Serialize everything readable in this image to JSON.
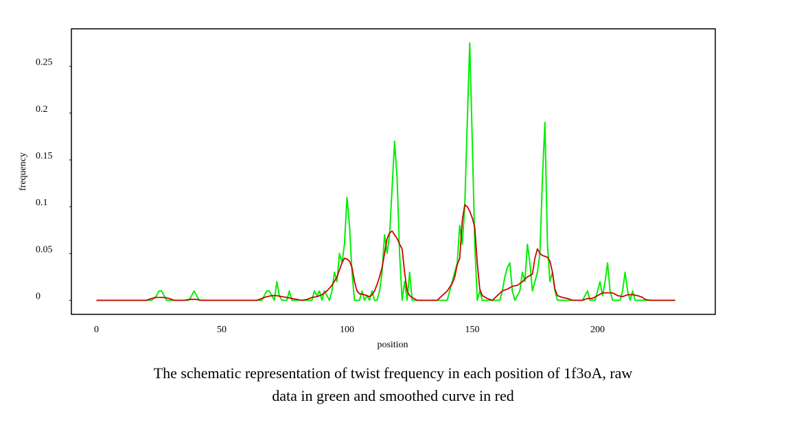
{
  "chart_data": {
    "type": "line",
    "xlabel": "position",
    "ylabel": "frequency",
    "xlim": [
      -10,
      247
    ],
    "ylim": [
      -0.015,
      0.29
    ],
    "xticks": [
      {
        "value": 0,
        "label": "0"
      },
      {
        "value": 50,
        "label": "50"
      },
      {
        "value": 100,
        "label": "100"
      },
      {
        "value": 150,
        "label": "150"
      },
      {
        "value": 200,
        "label": "200"
      }
    ],
    "yticks": [
      {
        "value": 0,
        "label": "0"
      },
      {
        "value": 0.05,
        "label": "0.05"
      },
      {
        "value": 0.1,
        "label": "0.1"
      },
      {
        "value": 0.15,
        "label": "0.15"
      },
      {
        "value": 0.2,
        "label": "0.2"
      },
      {
        "value": 0.25,
        "label": "0.25"
      }
    ],
    "grid": false,
    "legend": "none",
    "series": [
      {
        "color": "#00ee00",
        "points": [
          [
            0,
            0
          ],
          [
            22,
            0
          ],
          [
            24,
            0.005
          ],
          [
            25,
            0.01
          ],
          [
            26,
            0.01
          ],
          [
            27,
            0.005
          ],
          [
            28,
            0
          ],
          [
            37,
            0
          ],
          [
            38,
            0.005
          ],
          [
            39,
            0.01
          ],
          [
            40,
            0.005
          ],
          [
            41,
            0
          ],
          [
            66,
            0
          ],
          [
            67,
            0.005
          ],
          [
            68,
            0.01
          ],
          [
            69,
            0.01
          ],
          [
            70,
            0.005
          ],
          [
            71,
            0
          ],
          [
            72,
            0.02
          ],
          [
            73,
            0.005
          ],
          [
            74,
            0
          ],
          [
            76,
            0
          ],
          [
            77,
            0.01
          ],
          [
            78,
            0
          ],
          [
            86,
            0
          ],
          [
            87,
            0.01
          ],
          [
            88,
            0.005
          ],
          [
            89,
            0.01
          ],
          [
            90,
            0
          ],
          [
            91,
            0.01
          ],
          [
            92,
            0.005
          ],
          [
            93,
            0
          ],
          [
            94,
            0.01
          ],
          [
            95,
            0.03
          ],
          [
            96,
            0.02
          ],
          [
            97,
            0.05
          ],
          [
            98,
            0.04
          ],
          [
            99,
            0.06
          ],
          [
            100,
            0.11
          ],
          [
            101,
            0.08
          ],
          [
            102,
            0.03
          ],
          [
            103,
            0
          ],
          [
            105,
            0
          ],
          [
            106,
            0.01
          ],
          [
            107,
            0
          ],
          [
            108,
            0.005
          ],
          [
            109,
            0
          ],
          [
            110,
            0.01
          ],
          [
            111,
            0
          ],
          [
            112,
            0
          ],
          [
            113,
            0.01
          ],
          [
            114,
            0.03
          ],
          [
            115,
            0.07
          ],
          [
            116,
            0.05
          ],
          [
            117,
            0.07
          ],
          [
            118,
            0.12
          ],
          [
            119,
            0.17
          ],
          [
            120,
            0.13
          ],
          [
            121,
            0.05
          ],
          [
            122,
            0
          ],
          [
            123,
            0.02
          ],
          [
            124,
            0
          ],
          [
            125,
            0.03
          ],
          [
            126,
            0
          ],
          [
            127,
            0
          ],
          [
            140,
            0
          ],
          [
            141,
            0.01
          ],
          [
            142,
            0.02
          ],
          [
            143,
            0.03
          ],
          [
            144,
            0.04
          ],
          [
            145,
            0.08
          ],
          [
            146,
            0.06
          ],
          [
            147,
            0.1
          ],
          [
            148,
            0.19
          ],
          [
            149,
            0.275
          ],
          [
            150,
            0.17
          ],
          [
            151,
            0.06
          ],
          [
            152,
            0
          ],
          [
            153,
            0.01
          ],
          [
            154,
            0
          ],
          [
            161,
            0
          ],
          [
            162,
            0.01
          ],
          [
            163,
            0.025
          ],
          [
            164,
            0.035
          ],
          [
            165,
            0.04
          ],
          [
            166,
            0.01
          ],
          [
            167,
            0
          ],
          [
            168,
            0.005
          ],
          [
            169,
            0.01
          ],
          [
            170,
            0.03
          ],
          [
            171,
            0.02
          ],
          [
            172,
            0.06
          ],
          [
            173,
            0.04
          ],
          [
            174,
            0.01
          ],
          [
            175,
            0.02
          ],
          [
            176,
            0.03
          ],
          [
            177,
            0.05
          ],
          [
            178,
            0.13
          ],
          [
            179,
            0.19
          ],
          [
            180,
            0.06
          ],
          [
            181,
            0.02
          ],
          [
            182,
            0.03
          ],
          [
            183,
            0.01
          ],
          [
            184,
            0
          ],
          [
            194,
            0
          ],
          [
            195,
            0.005
          ],
          [
            196,
            0.01
          ],
          [
            197,
            0
          ],
          [
            199,
            0
          ],
          [
            200,
            0.01
          ],
          [
            201,
            0.02
          ],
          [
            202,
            0.005
          ],
          [
            203,
            0.02
          ],
          [
            204,
            0.04
          ],
          [
            205,
            0.01
          ],
          [
            206,
            0
          ],
          [
            209,
            0
          ],
          [
            210,
            0.01
          ],
          [
            211,
            0.03
          ],
          [
            212,
            0.01
          ],
          [
            213,
            0
          ],
          [
            214,
            0.01
          ],
          [
            215,
            0
          ],
          [
            231,
            0
          ]
        ]
      },
      {
        "color": "#cc0000",
        "points": [
          [
            0,
            0
          ],
          [
            20,
            0
          ],
          [
            22,
            0.002
          ],
          [
            24,
            0.003
          ],
          [
            27,
            0.003
          ],
          [
            29,
            0.002
          ],
          [
            31,
            0
          ],
          [
            35,
            0
          ],
          [
            37,
            0.001
          ],
          [
            40,
            0.001
          ],
          [
            42,
            0
          ],
          [
            64,
            0
          ],
          [
            66,
            0.002
          ],
          [
            68,
            0.004
          ],
          [
            70,
            0.005
          ],
          [
            72,
            0.005
          ],
          [
            74,
            0.004
          ],
          [
            76,
            0.003
          ],
          [
            78,
            0.002
          ],
          [
            80,
            0.001
          ],
          [
            82,
            0
          ],
          [
            84,
            0.001
          ],
          [
            86,
            0.003
          ],
          [
            88,
            0.004
          ],
          [
            90,
            0.006
          ],
          [
            92,
            0.01
          ],
          [
            94,
            0.016
          ],
          [
            96,
            0.025
          ],
          [
            98,
            0.04
          ],
          [
            99,
            0.045
          ],
          [
            100,
            0.044
          ],
          [
            101,
            0.042
          ],
          [
            102,
            0.035
          ],
          [
            103,
            0.02
          ],
          [
            104,
            0.01
          ],
          [
            105,
            0.007
          ],
          [
            107,
            0.006
          ],
          [
            109,
            0.004
          ],
          [
            110,
            0.006
          ],
          [
            111,
            0.01
          ],
          [
            112,
            0.017
          ],
          [
            113,
            0.025
          ],
          [
            114,
            0.035
          ],
          [
            115,
            0.05
          ],
          [
            116,
            0.066
          ],
          [
            117,
            0.072
          ],
          [
            118,
            0.074
          ],
          [
            119,
            0.07
          ],
          [
            120,
            0.066
          ],
          [
            121,
            0.06
          ],
          [
            122,
            0.055
          ],
          [
            123,
            0.03
          ],
          [
            124,
            0.01
          ],
          [
            125,
            0.005
          ],
          [
            126,
            0.003
          ],
          [
            128,
            0
          ],
          [
            136,
            0
          ],
          [
            138,
            0.005
          ],
          [
            140,
            0.01
          ],
          [
            142,
            0.018
          ],
          [
            143,
            0.025
          ],
          [
            144,
            0.038
          ],
          [
            145,
            0.045
          ],
          [
            146,
            0.085
          ],
          [
            147,
            0.102
          ],
          [
            148,
            0.1
          ],
          [
            149,
            0.095
          ],
          [
            150,
            0.088
          ],
          [
            151,
            0.078
          ],
          [
            152,
            0.04
          ],
          [
            153,
            0.012
          ],
          [
            154,
            0.005
          ],
          [
            156,
            0.002
          ],
          [
            158,
            0
          ],
          [
            160,
            0.005
          ],
          [
            162,
            0.01
          ],
          [
            164,
            0.012
          ],
          [
            166,
            0.015
          ],
          [
            168,
            0.016
          ],
          [
            170,
            0.02
          ],
          [
            172,
            0.025
          ],
          [
            174,
            0.028
          ],
          [
            175,
            0.045
          ],
          [
            176,
            0.055
          ],
          [
            177,
            0.05
          ],
          [
            178,
            0.048
          ],
          [
            180,
            0.046
          ],
          [
            181,
            0.042
          ],
          [
            182,
            0.03
          ],
          [
            183,
            0.012
          ],
          [
            184,
            0.005
          ],
          [
            186,
            0.003
          ],
          [
            188,
            0.002
          ],
          [
            190,
            0
          ],
          [
            194,
            0
          ],
          [
            196,
            0.002
          ],
          [
            198,
            0.002
          ],
          [
            200,
            0.005
          ],
          [
            202,
            0.008
          ],
          [
            204,
            0.008
          ],
          [
            206,
            0.008
          ],
          [
            208,
            0.005
          ],
          [
            210,
            0.004
          ],
          [
            212,
            0.006
          ],
          [
            214,
            0.006
          ],
          [
            216,
            0.005
          ],
          [
            218,
            0.003
          ],
          [
            219,
            0.001
          ],
          [
            221,
            0
          ],
          [
            231,
            0
          ]
        ]
      }
    ]
  },
  "caption": {
    "line1": "The schematic representation of twist frequency in each position of 1f3oA, raw",
    "line2": "data in green and smoothed curve in red"
  }
}
